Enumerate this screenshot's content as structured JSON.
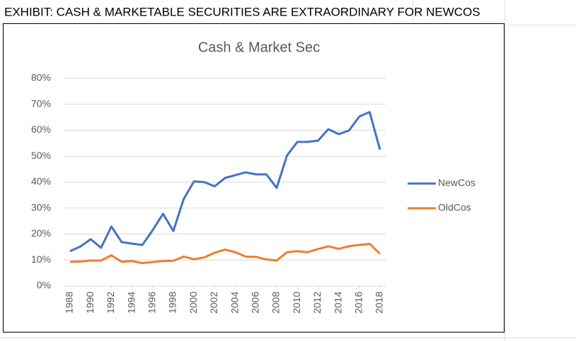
{
  "sheet_title": "EXHIBIT: CASH & MARKETABLE SECURITIES ARE EXTRAORDINARY FOR NEWCOS",
  "chart_data": {
    "type": "line",
    "title": "Cash & Market Sec",
    "x": [
      1988,
      1989,
      1990,
      1991,
      1992,
      1993,
      1994,
      1995,
      1996,
      1997,
      1998,
      1999,
      2000,
      2001,
      2002,
      2003,
      2004,
      2005,
      2006,
      2007,
      2008,
      2009,
      2010,
      2011,
      2012,
      2013,
      2014,
      2015,
      2016,
      2017,
      2018
    ],
    "xlim": [
      1988,
      2018
    ],
    "xticks": [
      1988,
      1990,
      1992,
      1994,
      1996,
      1998,
      2000,
      2002,
      2004,
      2006,
      2008,
      2010,
      2012,
      2014,
      2016,
      2018
    ],
    "series": [
      {
        "name": "NewCos",
        "color": "#4472c4",
        "values": [
          13.4,
          15.2,
          18,
          14.7,
          22.9,
          16.9,
          16.3,
          15.8,
          21.5,
          27.8,
          21.2,
          33.5,
          40.3,
          40,
          38.4,
          41.6,
          42.7,
          43.8,
          43,
          43,
          37.8,
          50.3,
          55.5,
          55.5,
          56,
          60.4,
          58.5,
          59.9,
          65.3,
          67,
          52.5
        ]
      },
      {
        "name": "OldCos",
        "color": "#ed7d31",
        "values": [
          9.3,
          9.4,
          9.8,
          9.8,
          11.8,
          9.3,
          9.6,
          8.8,
          9.2,
          9.6,
          9.7,
          11.3,
          10.3,
          11,
          12.8,
          14,
          13,
          11.3,
          11.2,
          10.2,
          9.8,
          13,
          13.4,
          13,
          14.2,
          15.3,
          14.3,
          15.3,
          15.8,
          16.2,
          12.4
        ]
      }
    ],
    "ylim": [
      0,
      80
    ],
    "yticks": [
      {
        "value": 0,
        "label": "0%"
      },
      {
        "value": 10,
        "label": "10%"
      },
      {
        "value": 20,
        "label": "20%"
      },
      {
        "value": 30,
        "label": "30%"
      },
      {
        "value": 40,
        "label": "40%"
      },
      {
        "value": 50,
        "label": "50%"
      },
      {
        "value": 60,
        "label": "60%"
      },
      {
        "value": 70,
        "label": "70%"
      },
      {
        "value": 80,
        "label": "80%"
      }
    ],
    "grid": true,
    "legend": "right"
  }
}
